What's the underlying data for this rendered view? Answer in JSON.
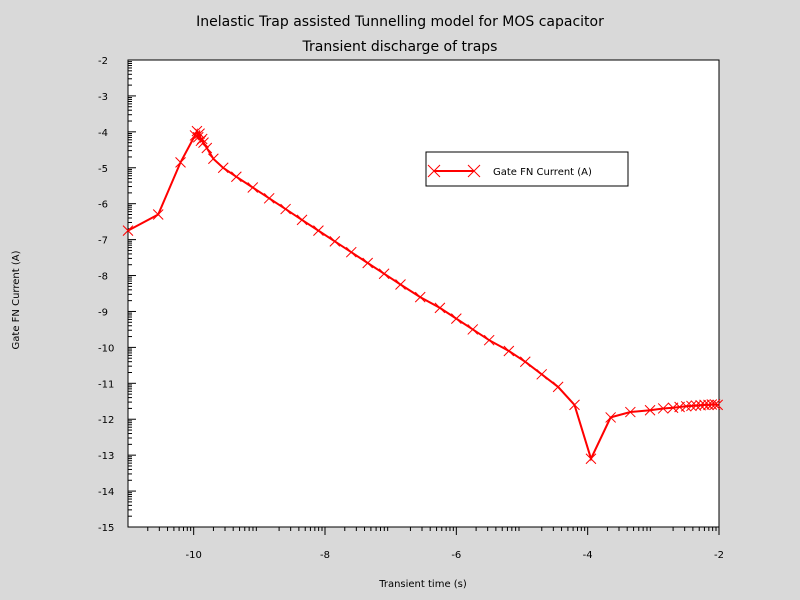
{
  "chart_data": {
    "type": "line",
    "title": "Inelastic Trap assisted Tunnelling model for MOS capacitor",
    "subtitle": "Transient discharge of traps",
    "xlabel": "Transient time (s)",
    "ylabel": "Gate FN Current (A)",
    "xlim": [
      -11,
      -2
    ],
    "ylim": [
      -15,
      -2
    ],
    "xticks": [
      -10,
      -8,
      -6,
      -4,
      -2
    ],
    "xtick_labels": [
      "-10",
      "-8",
      "-6",
      "-4",
      "-2"
    ],
    "yticks": [
      -15,
      -14,
      -13,
      -12,
      -11,
      -10,
      -9,
      -8,
      -7,
      -6,
      -5,
      -4,
      -3,
      -2
    ],
    "ytick_labels": [
      "-15",
      "-14",
      "-13",
      "-12",
      "-11",
      "-10",
      "-9",
      "-8",
      "-7",
      "-6",
      "-5",
      "-4",
      "-3",
      "-2"
    ],
    "grid": false,
    "legend_position": "top-right",
    "color": "#ff0000",
    "series": [
      {
        "name": "Gate FN Current (A)",
        "marker": "x",
        "x": [
          -11.0,
          -10.54,
          -10.2,
          -9.98,
          -9.95,
          -9.93,
          -9.91,
          -9.89,
          -9.87,
          -9.85,
          -9.8,
          -9.7,
          -9.55,
          -9.35,
          -9.1,
          -8.85,
          -8.6,
          -8.35,
          -8.1,
          -7.85,
          -7.6,
          -7.35,
          -7.1,
          -6.85,
          -6.55,
          -6.25,
          -6.0,
          -5.75,
          -5.5,
          -5.2,
          -4.95,
          -4.7,
          -4.45,
          -4.2,
          -3.95,
          -3.65,
          -3.35,
          -3.05,
          -2.85,
          -2.7,
          -2.6,
          -2.5,
          -2.42,
          -2.35,
          -2.28,
          -2.22,
          -2.16,
          -2.11,
          -2.06,
          -2.02
        ],
        "y": [
          -6.75,
          -6.3,
          -4.85,
          -4.1,
          -3.98,
          -4.15,
          -4.05,
          -4.25,
          -4.2,
          -4.3,
          -4.45,
          -4.75,
          -5.0,
          -5.25,
          -5.55,
          -5.85,
          -6.15,
          -6.45,
          -6.75,
          -7.05,
          -7.35,
          -7.65,
          -7.95,
          -8.25,
          -8.6,
          -8.9,
          -9.2,
          -9.5,
          -9.8,
          -10.1,
          -10.4,
          -10.75,
          -11.1,
          -11.6,
          -13.1,
          -11.95,
          -11.8,
          -11.75,
          -11.7,
          -11.68,
          -11.66,
          -11.64,
          -11.63,
          -11.62,
          -11.61,
          -11.6,
          -11.6,
          -11.59,
          -11.59,
          -11.6
        ]
      }
    ]
  }
}
